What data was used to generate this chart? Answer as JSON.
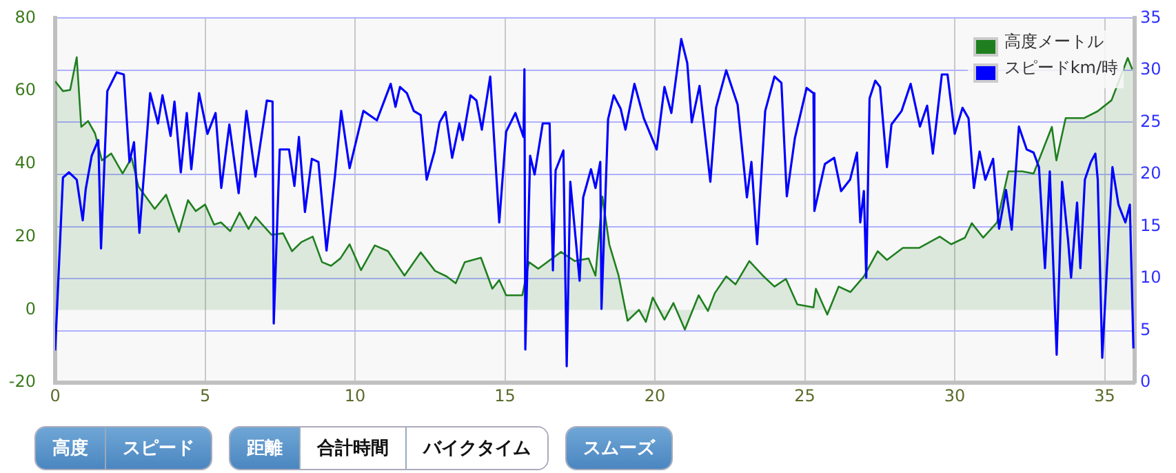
{
  "chart_data": {
    "type": "line",
    "legend": "top right",
    "grid": true,
    "marker": "none",
    "line_style": "solid",
    "xlim": [
      0,
      36
    ],
    "xticks": [
      0,
      5,
      10,
      15,
      20,
      25,
      30,
      35
    ],
    "ylim": [
      -20,
      80
    ],
    "yticks": [
      -20,
      0,
      20,
      40,
      60,
      80
    ],
    "y2lim": [
      0,
      35
    ],
    "y2ticks": [
      0,
      5,
      10,
      15,
      20,
      25,
      30,
      35
    ],
    "series": [
      {
        "name": "高度メートル",
        "type": "area",
        "color": "#1f7f1f",
        "x": [
          0,
          0.26,
          0.5,
          0.72,
          0.87,
          1.1,
          1.33,
          1.56,
          1.87,
          2.25,
          2.55,
          2.78,
          3.32,
          3.7,
          4.13,
          4.43,
          4.69,
          5.0,
          5.3,
          5.53,
          5.84,
          6.15,
          6.45,
          6.68,
          7.22,
          7.6,
          7.9,
          8.21,
          8.59,
          8.9,
          9.2,
          9.51,
          9.82,
          10.2,
          10.66,
          11.1,
          11.65,
          12.19,
          12.67,
          13.05,
          13.36,
          13.66,
          14.2,
          14.58,
          14.81,
          15.04,
          15.58,
          15.8,
          16.11,
          16.87,
          17.33,
          17.79,
          18.02,
          18.25,
          18.48,
          18.79,
          19.09,
          19.47,
          19.7,
          19.93,
          20.32,
          20.62,
          21.0,
          21.46,
          21.77,
          22.0,
          22.38,
          22.69,
          23.15,
          23.6,
          23.99,
          24.37,
          24.75,
          25.29,
          25.37,
          25.75,
          26.13,
          26.52,
          26.97,
          27.43,
          27.74,
          28.27,
          28.81,
          29.5,
          29.88,
          30.34,
          30.57,
          30.95,
          31.41,
          31.79,
          32.25,
          32.63,
          33.24,
          33.39,
          33.7,
          34.31,
          34.77,
          35.23,
          35.77,
          35.92
        ],
        "values": [
          62.7,
          60,
          60.3,
          69.3,
          50.2,
          51.8,
          48.4,
          41,
          42.9,
          37.4,
          41.7,
          33.8,
          27.7,
          31.6,
          21.4,
          30.1,
          27.1,
          28.9,
          23.4,
          24,
          21.6,
          26.7,
          22.2,
          25.5,
          20.6,
          21,
          16.1,
          18.6,
          20.1,
          13.1,
          12.1,
          14.1,
          18,
          10.9,
          17.7,
          16.1,
          9.4,
          15.8,
          10.7,
          9.2,
          7.3,
          13.1,
          14.3,
          5.8,
          8.2,
          4,
          4,
          13.1,
          11.3,
          15.9,
          13.4,
          14.1,
          9.4,
          31.1,
          18,
          9.4,
          -3,
          0,
          -3.3,
          3.4,
          -2.7,
          1.9,
          -5.4,
          4,
          -0.3,
          4.6,
          9.2,
          7,
          13.4,
          9.4,
          6.4,
          8.5,
          1.5,
          0.7,
          5.8,
          -1.3,
          6.4,
          4.9,
          9.2,
          16.1,
          13.7,
          17,
          17,
          20.1,
          18,
          19.8,
          23.8,
          19.8,
          24,
          38,
          38,
          37.4,
          50.2,
          41,
          52.6,
          52.6,
          54.5,
          57.5,
          69.1,
          66
        ]
      },
      {
        "name": "スピードkm/時",
        "type": "line",
        "axis": "y2",
        "color": "#0000ff",
        "x": [
          0,
          0.26,
          0.46,
          0.72,
          0.92,
          1.02,
          1.22,
          1.44,
          1.53,
          1.74,
          2.05,
          2.29,
          2.48,
          2.63,
          2.81,
          3.17,
          3.43,
          3.58,
          3.85,
          3.98,
          4.19,
          4.39,
          4.54,
          4.8,
          5.08,
          5.35,
          5.54,
          5.81,
          6.12,
          6.38,
          6.68,
          7.06,
          7.25,
          7.29,
          7.49,
          7.8,
          7.98,
          8.13,
          8.33,
          8.56,
          8.78,
          9.05,
          9.33,
          9.54,
          9.82,
          10.28,
          10.73,
          11.19,
          11.35,
          11.5,
          11.73,
          11.96,
          12.19,
          12.39,
          12.65,
          12.82,
          13.02,
          13.24,
          13.48,
          13.59,
          13.85,
          14.05,
          14.23,
          14.51,
          14.81,
          15.04,
          15.35,
          15.62,
          15.65,
          15.68,
          15.84,
          15.99,
          16.26,
          16.49,
          16.6,
          16.69,
          16.95,
          17.06,
          17.18,
          17.49,
          17.61,
          17.87,
          18.02,
          18.18,
          18.22,
          18.44,
          18.63,
          18.86,
          19.02,
          19.32,
          19.63,
          20.06,
          20.32,
          20.55,
          20.88,
          21.08,
          21.23,
          21.49,
          21.85,
          22.04,
          22.38,
          22.76,
          23.07,
          23.22,
          23.41,
          23.68,
          23.99,
          24.22,
          24.4,
          24.67,
          25.06,
          25.29,
          25.32,
          25.67,
          25.98,
          26.21,
          26.51,
          26.74,
          26.85,
          26.97,
          27.05,
          27.16,
          27.35,
          27.51,
          27.74,
          27.89,
          28.23,
          28.53,
          28.84,
          29.08,
          29.27,
          29.57,
          29.76,
          30.0,
          30.26,
          30.46,
          30.64,
          30.83,
          31.02,
          31.28,
          31.48,
          31.71,
          31.9,
          32.14,
          32.4,
          32.63,
          32.81,
          33.01,
          33.17,
          33.4,
          33.58,
          33.78,
          33.88,
          34.08,
          34.19,
          34.34,
          34.54,
          34.69,
          34.77,
          34.92,
          35.11,
          35.26,
          35.46,
          35.69,
          35.84,
          35.96
        ],
        "values": [
          3.1,
          19.7,
          20.2,
          19.5,
          15.6,
          18.6,
          21.8,
          23.3,
          12.9,
          28,
          29.8,
          29.6,
          21.2,
          23.1,
          14.4,
          27.8,
          24.9,
          27.6,
          23.7,
          27,
          20.2,
          25.9,
          20.5,
          27.8,
          23.9,
          25.9,
          18.7,
          24.8,
          18.2,
          26.1,
          19.8,
          27.1,
          27,
          5.7,
          22.4,
          22.4,
          18.9,
          23.6,
          16.4,
          21.5,
          21.2,
          12.7,
          19.8,
          26.1,
          20.6,
          26.1,
          25.2,
          28.7,
          26.5,
          28.4,
          27.8,
          26.1,
          25.7,
          19.5,
          22.2,
          25,
          26,
          21.6,
          24.9,
          23.3,
          27.6,
          27.1,
          24.3,
          29.4,
          15.4,
          24.1,
          25.9,
          23.6,
          30.1,
          3.2,
          21.8,
          20,
          24.9,
          24.9,
          10.8,
          20.4,
          22.3,
          1.6,
          19.3,
          9.8,
          17.8,
          20.5,
          18.7,
          21.2,
          7.1,
          25.3,
          27.6,
          26.3,
          24.3,
          28.7,
          25.4,
          22.4,
          28.4,
          25.9,
          33,
          30.7,
          25,
          28.5,
          19.3,
          26.4,
          30,
          26.7,
          17.8,
          21.2,
          13.3,
          26.1,
          29.4,
          28.8,
          17.9,
          23.5,
          28.3,
          27.8,
          16.5,
          21,
          21.6,
          18.4,
          19.5,
          22.1,
          15.4,
          18.4,
          10.1,
          27.3,
          29,
          28.4,
          20.7,
          24.8,
          26.1,
          28.7,
          24.6,
          26.6,
          22,
          29.6,
          29.6,
          23.9,
          26.4,
          25.4,
          18.7,
          22.2,
          19.5,
          21.5,
          14.8,
          18.5,
          14.7,
          24.6,
          22.4,
          22.1,
          20.7,
          11,
          20.3,
          2.7,
          19.3,
          13.7,
          10.1,
          17.3,
          11,
          19.5,
          21.2,
          22,
          19.5,
          2.4,
          12.9,
          20.7,
          17.1,
          15.4,
          17.1,
          3.3
        ]
      }
    ],
    "annotations": [
      "高度",
      "スピード",
      "距離",
      "合計時間",
      "バイクタイム",
      "スムーズ"
    ]
  }
}
